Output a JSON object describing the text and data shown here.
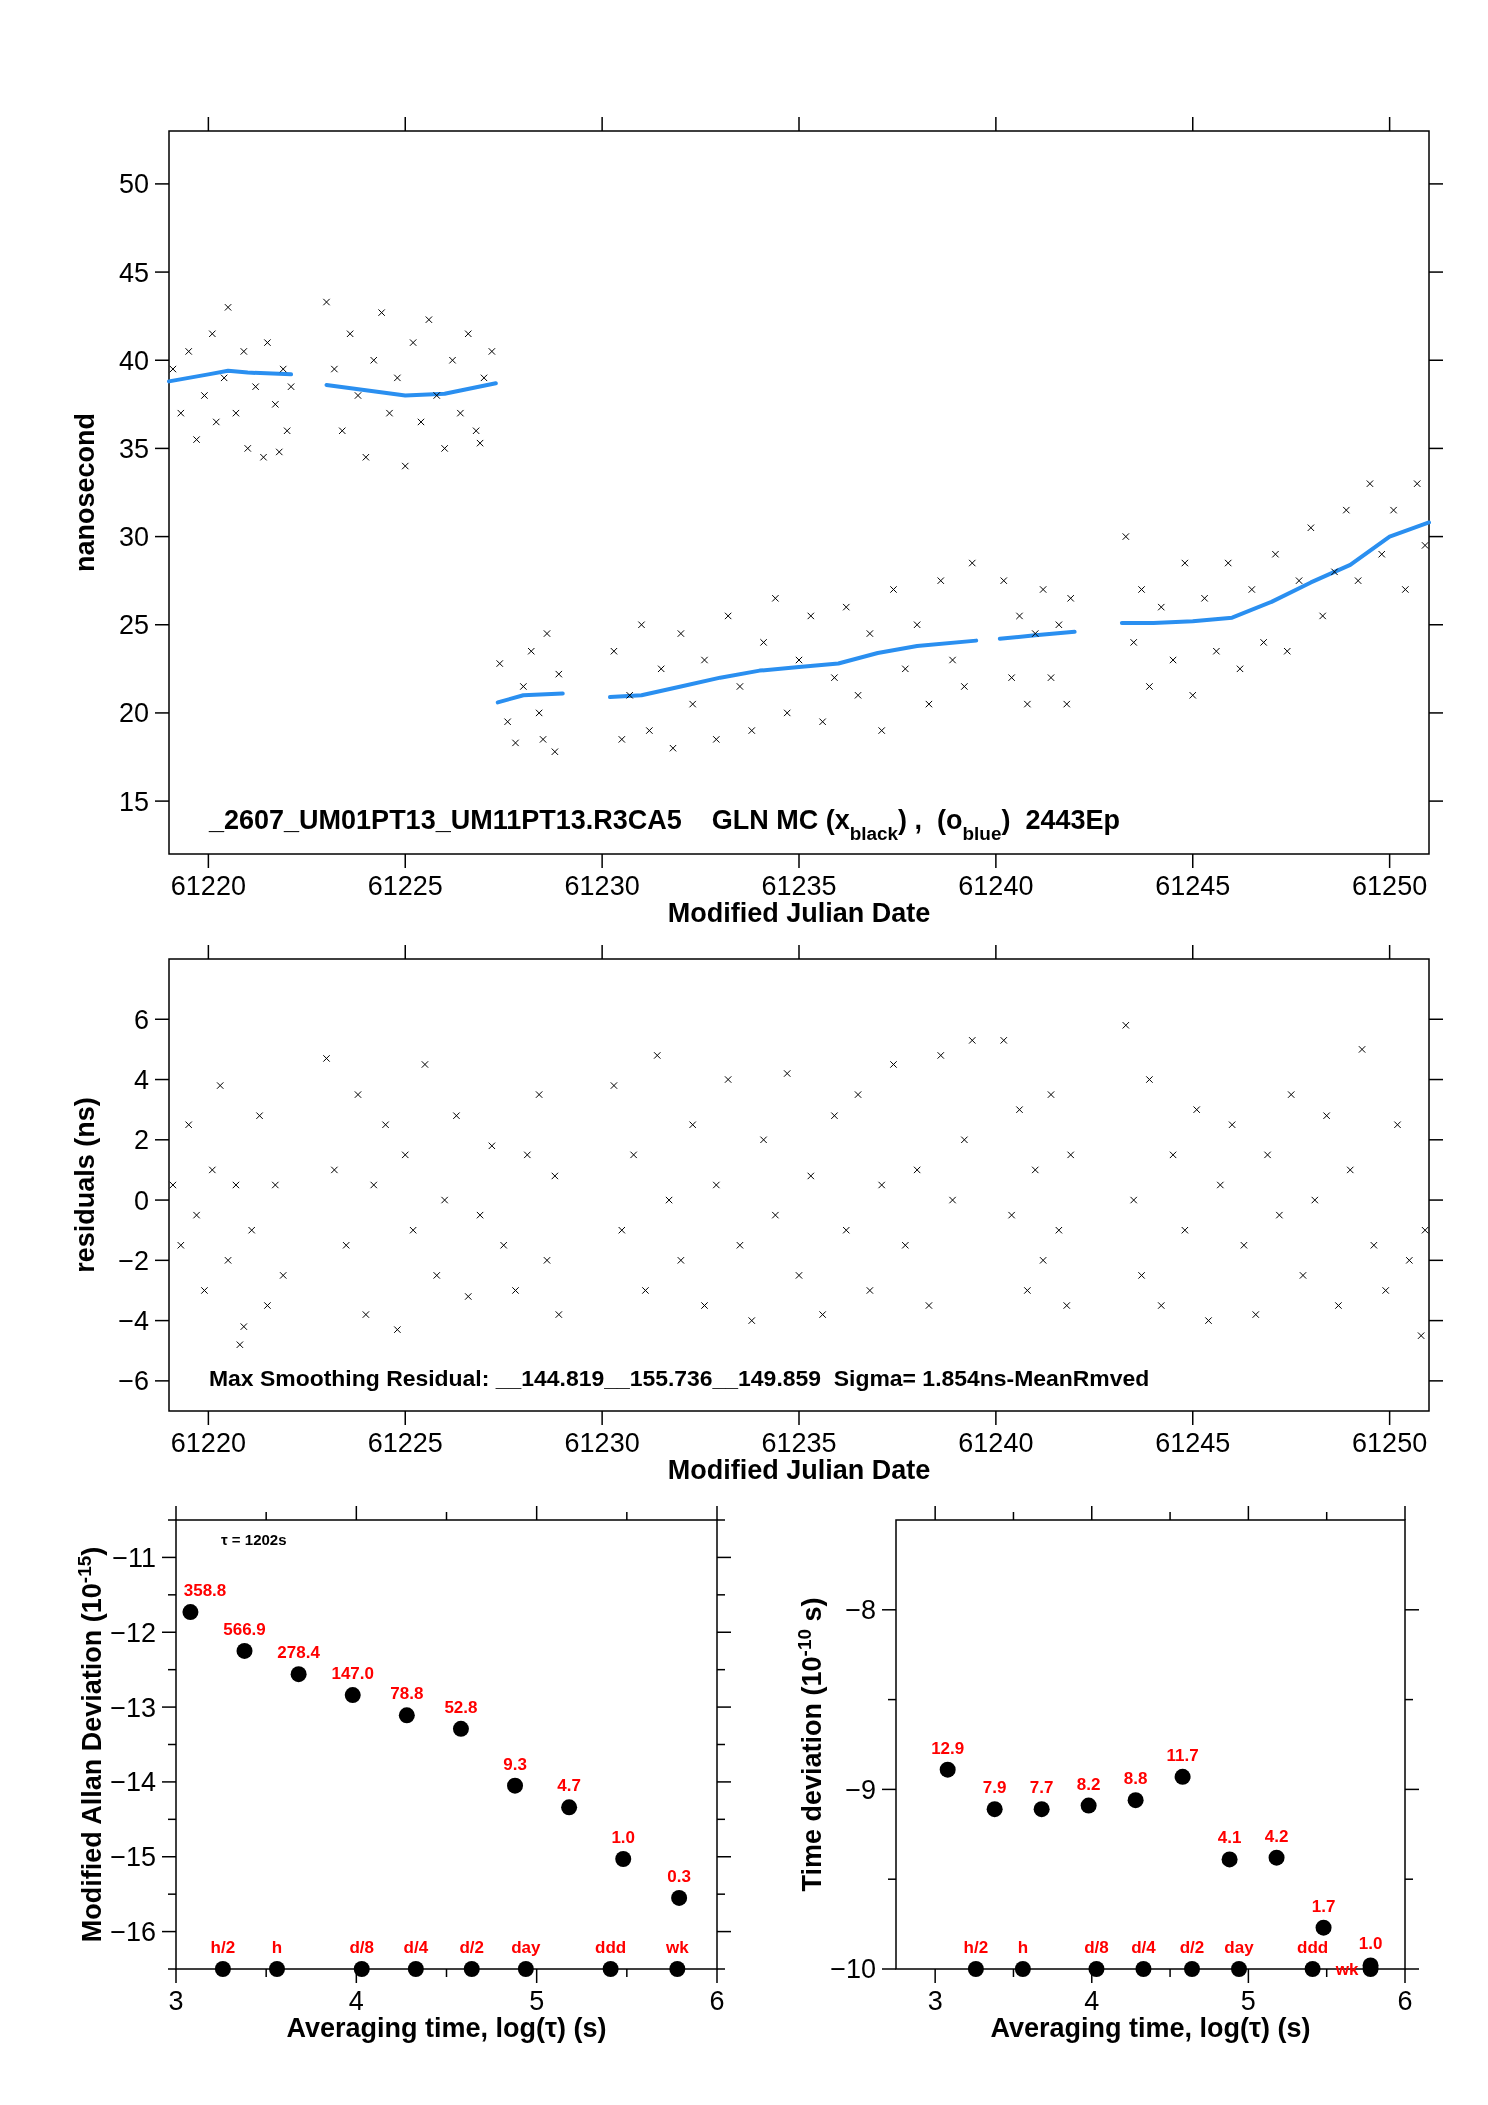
{
  "chart_data": [
    {
      "type": "scatter",
      "xlabel": "Modified Julian Date",
      "ylabel": "nanosecond",
      "xlim": [
        61219,
        61251
      ],
      "ylim": [
        12,
        53
      ],
      "xticks": [
        61220,
        61225,
        61230,
        61235,
        61240,
        61245,
        61250
      ],
      "yticks": [
        15,
        20,
        25,
        30,
        35,
        40,
        45,
        50
      ],
      "annotations": [
        "_2607_UM01PT13_UM11PT13.R3CA5    GLN MC (x$_{black}$) ,  (o$_{blue}$)  2443Ep"
      ],
      "series": [
        {
          "marker": "cross",
          "color": "#000000",
          "x": [
            61219.1,
            61219.3,
            61219.5,
            61219.7,
            61219.9,
            61220.1,
            61220.2,
            61220.4,
            61220.5,
            61220.7,
            61220.9,
            61221.0,
            61221.2,
            61221.4,
            61221.5,
            61221.7,
            61221.9,
            61222.0,
            61222.1,
            61221.8,
            61223.0,
            61223.2,
            61223.4,
            61223.6,
            61223.8,
            61224.0,
            61224.2,
            61224.4,
            61224.6,
            61224.8,
            61225.0,
            61225.2,
            61225.4,
            61225.6,
            61225.8,
            61226.0,
            61226.2,
            61226.4,
            61226.6,
            61226.8,
            61227.0,
            61227.2,
            61226.9,
            61227.4,
            61227.6,
            61227.8,
            61228.0,
            61228.2,
            61228.4,
            61228.6,
            61228.8,
            61228.9,
            61228.5,
            61230.3,
            61230.5,
            61230.7,
            61231.0,
            61231.2,
            61231.5,
            61231.8,
            61232.0,
            61232.3,
            61232.6,
            61232.9,
            61233.2,
            61233.5,
            61233.8,
            61234.1,
            61234.4,
            61234.7,
            61235.0,
            61235.3,
            61235.6,
            61235.9,
            61236.2,
            61236.5,
            61236.8,
            61237.1,
            61237.4,
            61237.7,
            61238.0,
            61238.3,
            61238.6,
            61238.9,
            61239.2,
            61239.4,
            61240.2,
            61240.4,
            61240.6,
            61240.8,
            61241.0,
            61241.2,
            61241.4,
            61241.6,
            61241.8,
            61241.9,
            61243.3,
            61243.5,
            61243.7,
            61243.9,
            61244.2,
            61244.5,
            61244.8,
            61245.0,
            61245.3,
            61245.6,
            61245.9,
            61246.2,
            61246.5,
            61246.8,
            61247.1,
            61247.4,
            61247.7,
            61248.0,
            61248.3,
            61248.6,
            61248.9,
            61249.2,
            61249.5,
            61249.8,
            61250.1,
            61250.4,
            61250.7,
            61250.9
          ],
          "values": [
            39.5,
            37,
            40.5,
            35.5,
            38,
            41.5,
            36.5,
            39,
            43,
            37,
            40.5,
            35,
            38.5,
            34.5,
            41,
            37.5,
            39.5,
            36,
            38.5,
            34.8,
            43.3,
            39.5,
            36,
            41.5,
            38,
            34.5,
            40,
            42.7,
            37,
            39,
            34,
            41,
            36.5,
            42.3,
            38,
            35,
            40,
            37,
            41.5,
            36,
            39,
            40.5,
            35.3,
            22.8,
            19.5,
            18.3,
            21.5,
            23.5,
            20,
            24.5,
            17.8,
            22.2,
            18.5,
            23.5,
            18.5,
            21,
            25,
            19,
            22.5,
            18,
            24.5,
            20.5,
            23,
            18.5,
            25.5,
            21.5,
            19,
            24,
            26.5,
            20,
            23,
            25.5,
            19.5,
            22,
            26,
            21,
            24.5,
            19,
            27,
            22.5,
            25,
            20.5,
            27.5,
            23,
            21.5,
            28.5,
            27.5,
            22,
            25.5,
            20.5,
            24.5,
            27,
            22,
            25,
            20.5,
            26.5,
            30,
            24,
            27,
            21.5,
            26,
            23,
            28.5,
            21,
            26.5,
            23.5,
            28.5,
            22.5,
            27,
            24,
            29,
            23.5,
            27.5,
            30.5,
            25.5,
            28,
            31.5,
            27.5,
            33,
            29,
            31.5,
            27,
            33,
            29.5
          ]
        },
        {
          "type": "line",
          "marker": "none",
          "color": "#2a8ff0",
          "x": [
            61219,
            61220,
            61220.5,
            61221,
            61222.1,
            61222.5,
            61223,
            61224,
            61225,
            61226,
            61227.3,
            61227.31,
            61227.35,
            61228,
            61229,
            61229.5,
            61230.2,
            61231,
            61232,
            61233,
            61234,
            61235,
            61236,
            61237,
            61238,
            61239.5,
            61239.8,
            61240.1,
            61241,
            61242,
            61242.5,
            61243.2,
            61244,
            61245,
            61246,
            61247,
            61248,
            61249,
            61250,
            61251
          ],
          "values": [
            38.8,
            39.2,
            39.4,
            39.3,
            39.2,
            null,
            38.6,
            38.3,
            38.0,
            38.1,
            38.7,
            null,
            20.6,
            21.0,
            21.1,
            null,
            20.9,
            21.0,
            21.5,
            22.0,
            22.4,
            22.6,
            22.8,
            23.4,
            23.8,
            24.1,
            null,
            24.2,
            24.4,
            24.6,
            null,
            25.1,
            25.1,
            25.2,
            25.4,
            26.3,
            27.4,
            28.4,
            30.0,
            30.8
          ]
        }
      ]
    },
    {
      "type": "scatter",
      "xlabel": "Modified Julian Date",
      "ylabel": "residuals (ns)",
      "xlim": [
        61219,
        61251
      ],
      "ylim": [
        -7,
        8
      ],
      "xticks": [
        61220,
        61225,
        61230,
        61235,
        61240,
        61245,
        61250
      ],
      "yticks": [
        -6,
        -4,
        -2,
        0,
        2,
        4,
        6
      ],
      "marker": "cross",
      "annotations": [
        "Max Smoothing Residual: __144.819__155.736__149.859  Sigma= 1.854ns-MeanRmved"
      ],
      "series": [
        {
          "color": "#000000",
          "x": [
            61219.1,
            61219.3,
            61219.5,
            61219.7,
            61219.9,
            61220.1,
            61220.3,
            61220.5,
            61220.7,
            61220.9,
            61221.1,
            61221.3,
            61221.5,
            61221.7,
            61221.9,
            61220.8,
            61223.0,
            61223.2,
            61223.5,
            61223.8,
            61224.0,
            61224.2,
            61224.5,
            61224.8,
            61225.0,
            61225.2,
            61225.5,
            61225.8,
            61226.0,
            61226.3,
            61226.6,
            61226.9,
            61227.2,
            61227.5,
            61227.8,
            61228.1,
            61228.4,
            61228.6,
            61228.9,
            61228.8,
            61230.3,
            61230.5,
            61230.8,
            61231.1,
            61231.4,
            61231.7,
            61232.0,
            61232.3,
            61232.6,
            61232.9,
            61233.2,
            61233.5,
            61233.8,
            61234.1,
            61234.4,
            61234.7,
            61235.0,
            61235.3,
            61235.6,
            61235.9,
            61236.2,
            61236.5,
            61236.8,
            61237.1,
            61237.4,
            61237.7,
            61238.0,
            61238.3,
            61238.6,
            61238.9,
            61239.2,
            61239.4,
            61240.2,
            61240.4,
            61240.6,
            61240.8,
            61241.0,
            61241.2,
            61241.4,
            61241.6,
            61241.8,
            61241.9,
            61243.3,
            61243.5,
            61243.7,
            61243.9,
            61244.2,
            61244.5,
            61244.8,
            61245.1,
            61245.4,
            61245.7,
            61246.0,
            61246.3,
            61246.6,
            61246.9,
            61247.2,
            61247.5,
            61247.8,
            61248.1,
            61248.4,
            61248.7,
            61249.0,
            61249.3,
            61249.6,
            61249.9,
            61250.2,
            61250.5,
            61250.8,
            61250.9
          ],
          "values": [
            0.5,
            -1.5,
            2.5,
            -0.5,
            -3,
            1,
            3.8,
            -2,
            0.5,
            -4.2,
            -1,
            2.8,
            -3.5,
            0.5,
            -2.5,
            -4.8,
            4.7,
            1,
            -1.5,
            3.5,
            -3.8,
            0.5,
            2.5,
            -4.3,
            1.5,
            -1,
            4.5,
            -2.5,
            0,
            2.8,
            -3.2,
            -0.5,
            1.8,
            -1.5,
            -3,
            1.5,
            3.5,
            -2,
            -3.8,
            0.8,
            3.8,
            -1,
            1.5,
            -3,
            4.8,
            0,
            -2,
            2.5,
            -3.5,
            0.5,
            4,
            -1.5,
            -4,
            2,
            -0.5,
            4.2,
            -2.5,
            0.8,
            -3.8,
            2.8,
            -1,
            3.5,
            -3,
            0.5,
            4.5,
            -1.5,
            1,
            -3.5,
            4.8,
            0,
            2,
            5.3,
            5.3,
            -0.5,
            3,
            -3,
            1,
            -2,
            3.5,
            -1,
            -3.5,
            1.5,
            5.8,
            0,
            -2.5,
            4,
            -3.5,
            1.5,
            -1,
            3,
            -4,
            0.5,
            2.5,
            -1.5,
            -3.8,
            1.5,
            -0.5,
            3.5,
            -2.5,
            0,
            2.8,
            -3.5,
            1,
            5,
            -1.5,
            -3,
            2.5,
            -2,
            -4.5,
            -1
          ]
        }
      ]
    },
    {
      "type": "scatter",
      "xlabel": "Averaging time, log(τ) (s)",
      "ylabel": "Modified Allan Deviation (10$^{-15}$)",
      "xlim": [
        3,
        6
      ],
      "ylim": [
        -16.5,
        -10.5
      ],
      "xticks": [
        3,
        {
          "value": 3.5,
          "label": null
        },
        4,
        {
          "value": 4.5,
          "label": null
        },
        5,
        {
          "value": 5.5,
          "label": null
        },
        6
      ],
      "yticks": [
        {
          "value": -16.5,
          "label": null
        },
        -16,
        {
          "value": -15.5,
          "label": null
        },
        -15,
        {
          "value": -14.5,
          "label": null
        },
        -14,
        {
          "value": -13.5,
          "label": null
        },
        -13,
        {
          "value": -12.5,
          "label": null
        },
        -12,
        {
          "value": -11.5,
          "label": null
        },
        -11,
        {
          "value": -10.5,
          "label": null
        }
      ],
      "marker": "circle",
      "annotations": [
        "τ = 1202s",
        {
          "text": "358.8",
          "x": 3.08,
          "y": -11.73
        },
        {
          "text": "566.9",
          "x": 3.38,
          "y": -12.25
        },
        {
          "text": "278.4",
          "x": 3.68,
          "y": -12.56
        },
        {
          "text": "147.0",
          "x": 3.98,
          "y": -12.84
        },
        {
          "text": "78.8",
          "x": 4.28,
          "y": -13.11
        },
        {
          "text": "52.8",
          "x": 4.58,
          "y": -13.29
        },
        {
          "text": "9.3",
          "x": 4.88,
          "y": -14.05
        },
        {
          "text": "4.7",
          "x": 5.18,
          "y": -14.34
        },
        {
          "text": "1.0",
          "x": 5.48,
          "y": -15.03
        },
        {
          "text": "0.3",
          "x": 5.79,
          "y": -15.55
        },
        {
          "text": "h/2",
          "x": 3.26,
          "y": -16.5
        },
        {
          "text": "h",
          "x": 3.56,
          "y": -16.5
        },
        {
          "text": "d/8",
          "x": 4.03,
          "y": -16.5
        },
        {
          "text": "d/4",
          "x": 4.33,
          "y": -16.5
        },
        {
          "text": "d/2",
          "x": 4.64,
          "y": -16.5
        },
        {
          "text": "day",
          "x": 4.94,
          "y": -16.5
        },
        {
          "text": "ddd",
          "x": 5.41,
          "y": -16.5
        },
        {
          "text": "wk",
          "x": 5.78,
          "y": -16.5
        }
      ],
      "series": [
        {
          "color": "#000000",
          "x": [
            3.08,
            3.38,
            3.68,
            3.98,
            4.28,
            4.58,
            4.88,
            5.18,
            5.48,
            5.79
          ],
          "values": [
            -11.73,
            -12.25,
            -12.56,
            -12.84,
            -13.11,
            -13.29,
            -14.05,
            -14.34,
            -15.03,
            -15.55
          ]
        },
        {
          "color": "#000000",
          "x": [
            3.26,
            3.56,
            4.03,
            4.33,
            4.64,
            4.94,
            5.41,
            5.78
          ],
          "values": [
            -16.5,
            -16.5,
            -16.5,
            -16.5,
            -16.5,
            -16.5,
            -16.5,
            -16.5
          ]
        }
      ]
    },
    {
      "type": "scatter",
      "xlabel": "Averaging time, log(τ) (s)",
      "ylabel": "Time deviation (10$^{-10}$ s)",
      "xlim": [
        2.75,
        6
      ],
      "ylim": [
        -10,
        -7.5
      ],
      "xticks": [
        3,
        {
          "value": 3.5,
          "label": null
        },
        4,
        {
          "value": 4.5,
          "label": null
        },
        5,
        {
          "value": 5.5,
          "label": null
        },
        6
      ],
      "yticks": [
        -10,
        {
          "value": -9.5,
          "label": null
        },
        -9,
        {
          "value": -8.5,
          "label": null
        },
        -8
      ],
      "marker": "circle",
      "annotations": [
        {
          "text": "12.9",
          "x": 3.08,
          "y": -8.89
        },
        {
          "text": "7.9",
          "x": 3.38,
          "y": -9.11
        },
        {
          "text": "7.7",
          "x": 3.68,
          "y": -9.11
        },
        {
          "text": "8.2",
          "x": 3.98,
          "y": -9.09
        },
        {
          "text": "8.8",
          "x": 4.28,
          "y": -9.06
        },
        {
          "text": "11.7",
          "x": 4.58,
          "y": -8.93
        },
        {
          "text": "4.1",
          "x": 4.88,
          "y": -9.39
        },
        {
          "text": "4.2",
          "x": 5.18,
          "y": -9.38
        },
        {
          "text": "1.7",
          "x": 5.48,
          "y": -9.77
        },
        {
          "text": "1.0",
          "x": 5.78,
          "y": -9.98
        },
        {
          "text": "h/2",
          "x": 3.26,
          "y": -10
        },
        {
          "text": "h",
          "x": 3.56,
          "y": -10
        },
        {
          "text": "d/8",
          "x": 4.03,
          "y": -10
        },
        {
          "text": "d/4",
          "x": 4.33,
          "y": -10
        },
        {
          "text": "d/2",
          "x": 4.64,
          "y": -10
        },
        {
          "text": "day",
          "x": 4.94,
          "y": -10
        },
        {
          "text": "ddd",
          "x": 5.41,
          "y": -10
        },
        {
          "text": "wk",
          "x": 5.78,
          "y": -10
        }
      ],
      "series": [
        {
          "color": "#000000",
          "x": [
            3.08,
            3.38,
            3.68,
            3.98,
            4.28,
            4.58,
            4.88,
            5.18,
            5.48,
            5.78
          ],
          "values": [
            -8.89,
            -9.11,
            -9.11,
            -9.09,
            -9.06,
            -8.93,
            -9.39,
            -9.38,
            -9.77,
            -9.98
          ]
        },
        {
          "color": "#000000",
          "x": [
            3.26,
            3.56,
            4.03,
            4.33,
            4.64,
            4.94,
            5.41,
            5.78
          ],
          "values": [
            -10,
            -10,
            -10,
            -10,
            -10,
            -10,
            -10,
            -10
          ]
        }
      ]
    }
  ]
}
